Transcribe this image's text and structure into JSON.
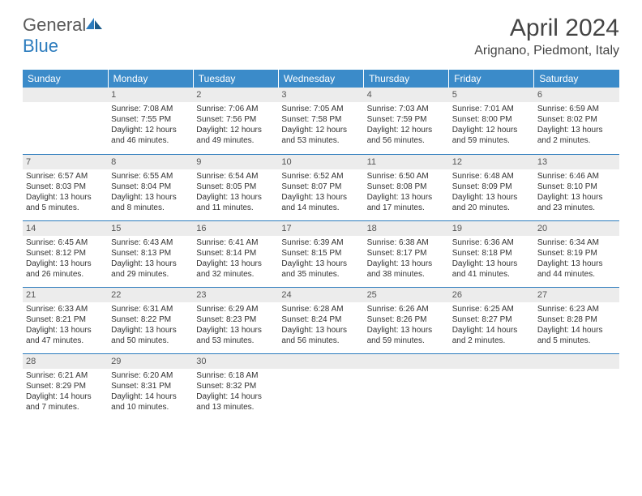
{
  "logo": {
    "text_general": "General",
    "text_blue": "Blue"
  },
  "title": "April 2024",
  "location": "Arignano, Piedmont, Italy",
  "colors": {
    "header_bg": "#3b8bc9",
    "header_text": "#ffffff",
    "daynum_bg": "#ececec",
    "border": "#2b7bbd",
    "logo_gray": "#5a5a5a",
    "logo_blue": "#2b7bbd"
  },
  "weekdays": [
    "Sunday",
    "Monday",
    "Tuesday",
    "Wednesday",
    "Thursday",
    "Friday",
    "Saturday"
  ],
  "weeks": [
    [
      {
        "day": "",
        "lines": []
      },
      {
        "day": "1",
        "lines": [
          "Sunrise: 7:08 AM",
          "Sunset: 7:55 PM",
          "Daylight: 12 hours",
          "and 46 minutes."
        ]
      },
      {
        "day": "2",
        "lines": [
          "Sunrise: 7:06 AM",
          "Sunset: 7:56 PM",
          "Daylight: 12 hours",
          "and 49 minutes."
        ]
      },
      {
        "day": "3",
        "lines": [
          "Sunrise: 7:05 AM",
          "Sunset: 7:58 PM",
          "Daylight: 12 hours",
          "and 53 minutes."
        ]
      },
      {
        "day": "4",
        "lines": [
          "Sunrise: 7:03 AM",
          "Sunset: 7:59 PM",
          "Daylight: 12 hours",
          "and 56 minutes."
        ]
      },
      {
        "day": "5",
        "lines": [
          "Sunrise: 7:01 AM",
          "Sunset: 8:00 PM",
          "Daylight: 12 hours",
          "and 59 minutes."
        ]
      },
      {
        "day": "6",
        "lines": [
          "Sunrise: 6:59 AM",
          "Sunset: 8:02 PM",
          "Daylight: 13 hours",
          "and 2 minutes."
        ]
      }
    ],
    [
      {
        "day": "7",
        "lines": [
          "Sunrise: 6:57 AM",
          "Sunset: 8:03 PM",
          "Daylight: 13 hours",
          "and 5 minutes."
        ]
      },
      {
        "day": "8",
        "lines": [
          "Sunrise: 6:55 AM",
          "Sunset: 8:04 PM",
          "Daylight: 13 hours",
          "and 8 minutes."
        ]
      },
      {
        "day": "9",
        "lines": [
          "Sunrise: 6:54 AM",
          "Sunset: 8:05 PM",
          "Daylight: 13 hours",
          "and 11 minutes."
        ]
      },
      {
        "day": "10",
        "lines": [
          "Sunrise: 6:52 AM",
          "Sunset: 8:07 PM",
          "Daylight: 13 hours",
          "and 14 minutes."
        ]
      },
      {
        "day": "11",
        "lines": [
          "Sunrise: 6:50 AM",
          "Sunset: 8:08 PM",
          "Daylight: 13 hours",
          "and 17 minutes."
        ]
      },
      {
        "day": "12",
        "lines": [
          "Sunrise: 6:48 AM",
          "Sunset: 8:09 PM",
          "Daylight: 13 hours",
          "and 20 minutes."
        ]
      },
      {
        "day": "13",
        "lines": [
          "Sunrise: 6:46 AM",
          "Sunset: 8:10 PM",
          "Daylight: 13 hours",
          "and 23 minutes."
        ]
      }
    ],
    [
      {
        "day": "14",
        "lines": [
          "Sunrise: 6:45 AM",
          "Sunset: 8:12 PM",
          "Daylight: 13 hours",
          "and 26 minutes."
        ]
      },
      {
        "day": "15",
        "lines": [
          "Sunrise: 6:43 AM",
          "Sunset: 8:13 PM",
          "Daylight: 13 hours",
          "and 29 minutes."
        ]
      },
      {
        "day": "16",
        "lines": [
          "Sunrise: 6:41 AM",
          "Sunset: 8:14 PM",
          "Daylight: 13 hours",
          "and 32 minutes."
        ]
      },
      {
        "day": "17",
        "lines": [
          "Sunrise: 6:39 AM",
          "Sunset: 8:15 PM",
          "Daylight: 13 hours",
          "and 35 minutes."
        ]
      },
      {
        "day": "18",
        "lines": [
          "Sunrise: 6:38 AM",
          "Sunset: 8:17 PM",
          "Daylight: 13 hours",
          "and 38 minutes."
        ]
      },
      {
        "day": "19",
        "lines": [
          "Sunrise: 6:36 AM",
          "Sunset: 8:18 PM",
          "Daylight: 13 hours",
          "and 41 minutes."
        ]
      },
      {
        "day": "20",
        "lines": [
          "Sunrise: 6:34 AM",
          "Sunset: 8:19 PM",
          "Daylight: 13 hours",
          "and 44 minutes."
        ]
      }
    ],
    [
      {
        "day": "21",
        "lines": [
          "Sunrise: 6:33 AM",
          "Sunset: 8:21 PM",
          "Daylight: 13 hours",
          "and 47 minutes."
        ]
      },
      {
        "day": "22",
        "lines": [
          "Sunrise: 6:31 AM",
          "Sunset: 8:22 PM",
          "Daylight: 13 hours",
          "and 50 minutes."
        ]
      },
      {
        "day": "23",
        "lines": [
          "Sunrise: 6:29 AM",
          "Sunset: 8:23 PM",
          "Daylight: 13 hours",
          "and 53 minutes."
        ]
      },
      {
        "day": "24",
        "lines": [
          "Sunrise: 6:28 AM",
          "Sunset: 8:24 PM",
          "Daylight: 13 hours",
          "and 56 minutes."
        ]
      },
      {
        "day": "25",
        "lines": [
          "Sunrise: 6:26 AM",
          "Sunset: 8:26 PM",
          "Daylight: 13 hours",
          "and 59 minutes."
        ]
      },
      {
        "day": "26",
        "lines": [
          "Sunrise: 6:25 AM",
          "Sunset: 8:27 PM",
          "Daylight: 14 hours",
          "and 2 minutes."
        ]
      },
      {
        "day": "27",
        "lines": [
          "Sunrise: 6:23 AM",
          "Sunset: 8:28 PM",
          "Daylight: 14 hours",
          "and 5 minutes."
        ]
      }
    ],
    [
      {
        "day": "28",
        "lines": [
          "Sunrise: 6:21 AM",
          "Sunset: 8:29 PM",
          "Daylight: 14 hours",
          "and 7 minutes."
        ]
      },
      {
        "day": "29",
        "lines": [
          "Sunrise: 6:20 AM",
          "Sunset: 8:31 PM",
          "Daylight: 14 hours",
          "and 10 minutes."
        ]
      },
      {
        "day": "30",
        "lines": [
          "Sunrise: 6:18 AM",
          "Sunset: 8:32 PM",
          "Daylight: 14 hours",
          "and 13 minutes."
        ]
      },
      {
        "day": "",
        "lines": []
      },
      {
        "day": "",
        "lines": []
      },
      {
        "day": "",
        "lines": []
      },
      {
        "day": "",
        "lines": []
      }
    ]
  ]
}
